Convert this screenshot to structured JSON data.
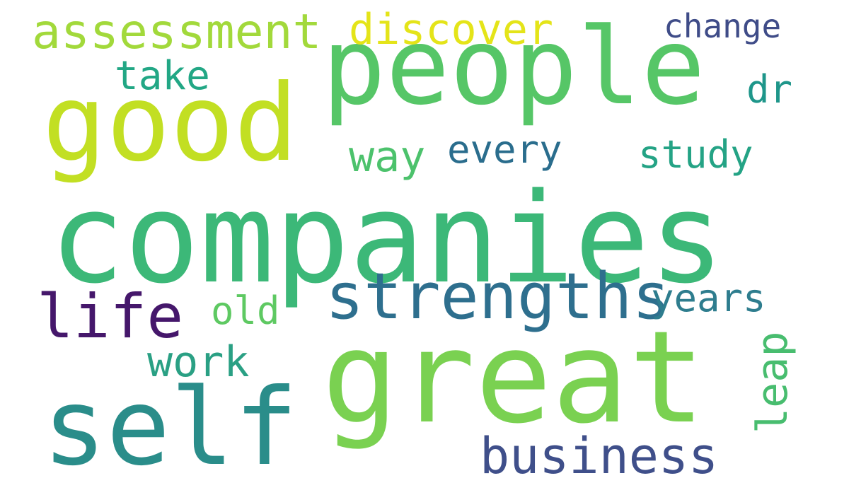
{
  "words": [
    {
      "id": "companies",
      "text": "companies",
      "color": "#3cb878"
    },
    {
      "id": "people",
      "text": "people",
      "color": "#56c667"
    },
    {
      "id": "great",
      "text": "great",
      "color": "#7ad151"
    },
    {
      "id": "good",
      "text": "good",
      "color": "#c2df23"
    },
    {
      "id": "self",
      "text": "self",
      "color": "#2a8d8a"
    },
    {
      "id": "strengths",
      "text": "strengths",
      "color": "#2e6f8e"
    },
    {
      "id": "business",
      "text": "business",
      "color": "#3f4f8a"
    },
    {
      "id": "assessment",
      "text": "assessment",
      "color": "#a2d93b"
    },
    {
      "id": "discover",
      "text": "discover",
      "color": "#e4e419"
    },
    {
      "id": "life",
      "text": "life",
      "color": "#45176b"
    },
    {
      "id": "take",
      "text": "take",
      "color": "#22a785"
    },
    {
      "id": "way",
      "text": "way",
      "color": "#4cc26c"
    },
    {
      "id": "every",
      "text": "every",
      "color": "#2a6d8d"
    },
    {
      "id": "study",
      "text": "study",
      "color": "#24a385"
    },
    {
      "id": "years",
      "text": "years",
      "color": "#2e7d8e"
    },
    {
      "id": "old",
      "text": "old",
      "color": "#5ec962"
    },
    {
      "id": "work",
      "text": "work",
      "color": "#2aa084"
    },
    {
      "id": "change",
      "text": "change",
      "color": "#3f4c88"
    },
    {
      "id": "dr",
      "text": "dr",
      "color": "#1e968a"
    },
    {
      "id": "leap",
      "text": "leap",
      "color": "#48bd6f"
    }
  ]
}
